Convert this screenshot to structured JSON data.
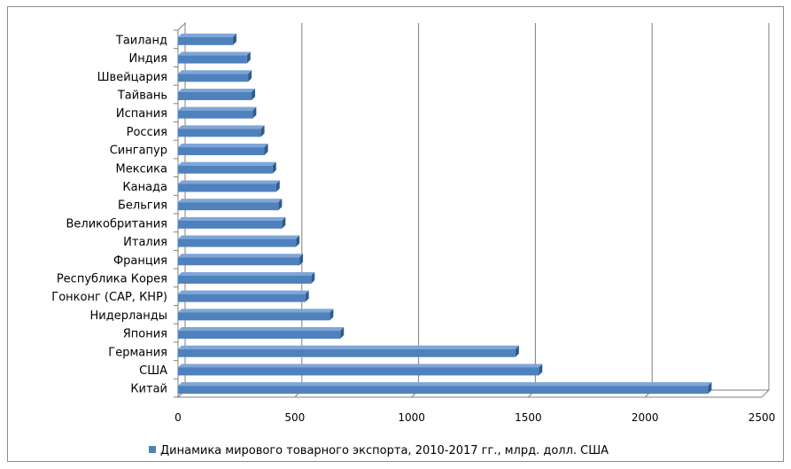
{
  "chart_data": {
    "type": "bar",
    "orientation": "horizontal",
    "categories": [
      "Таиланд",
      "Индия",
      "Швейцария",
      "Тайвань",
      "Испания",
      "Россия",
      "Сингапур",
      "Мексика",
      "Канада",
      "Бельгия",
      "Великобритания",
      "Италия",
      "Франция",
      "Республика Корея",
      "Гонконг (САР, КНР)",
      "Нидерланды",
      "Япония",
      "Германия",
      "США",
      "Китай"
    ],
    "series": [
      {
        "name": "Динамика мирового товарного экспорта, 2010-2017 гг., млрд. долл. США",
        "values": [
          235,
          295,
          300,
          315,
          320,
          355,
          370,
          405,
          420,
          430,
          445,
          505,
          520,
          570,
          545,
          650,
          695,
          1445,
          1545,
          2270
        ],
        "color": "#4f81bd"
      }
    ],
    "x_ticks": [
      0,
      500,
      1000,
      1500,
      2000,
      2500
    ],
    "xlim": [
      0,
      2500
    ],
    "grid": "vertical",
    "legend": "bottom",
    "title": "",
    "xlabel": "",
    "ylabel": ""
  }
}
